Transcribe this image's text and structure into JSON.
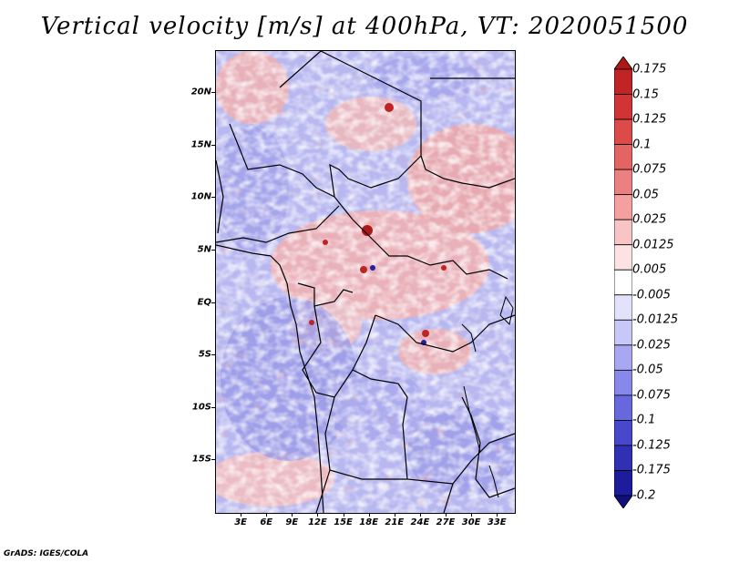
{
  "title": "Vertical velocity [m/s] at 400hPa, VT: 2020051500",
  "map": {
    "lon_range": [
      0,
      35
    ],
    "lat_range": [
      -20,
      24
    ],
    "y_ticks": [
      "20N",
      "15N",
      "10N",
      "5N",
      "EQ",
      "5S",
      "10S",
      "15S"
    ],
    "y_tick_lats": [
      20,
      15,
      10,
      5,
      0,
      -5,
      -10,
      -15
    ],
    "x_ticks": [
      "3E",
      "6E",
      "9E",
      "12E",
      "15E",
      "18E",
      "21E",
      "24E",
      "27E",
      "30E",
      "33E"
    ],
    "x_tick_lons": [
      3,
      6,
      9,
      12,
      15,
      18,
      21,
      24,
      27,
      30,
      33
    ]
  },
  "colorbar": {
    "labels": [
      "0.175",
      "0.15",
      "0.125",
      "0.1",
      "0.075",
      "0.05",
      "0.025",
      "0.0125",
      "0.005",
      "-0.005",
      "-0.0125",
      "-0.025",
      "-0.05",
      "-0.075",
      "-0.1",
      "-0.125",
      "-0.175",
      "-0.2"
    ],
    "colors": [
      "#b01818",
      "#c02424",
      "#d03434",
      "#dc4a4a",
      "#e46464",
      "#ec8080",
      "#f4a0a0",
      "#f8c4c4",
      "#fce2e2",
      "#ffffff",
      "#e2e2fc",
      "#c8c8f8",
      "#a8a8f2",
      "#8888ea",
      "#6868de",
      "#4848cc",
      "#3030b4",
      "#1c1c9c",
      "#10107c"
    ]
  },
  "credit": "GrADS: IGES/COLA"
}
